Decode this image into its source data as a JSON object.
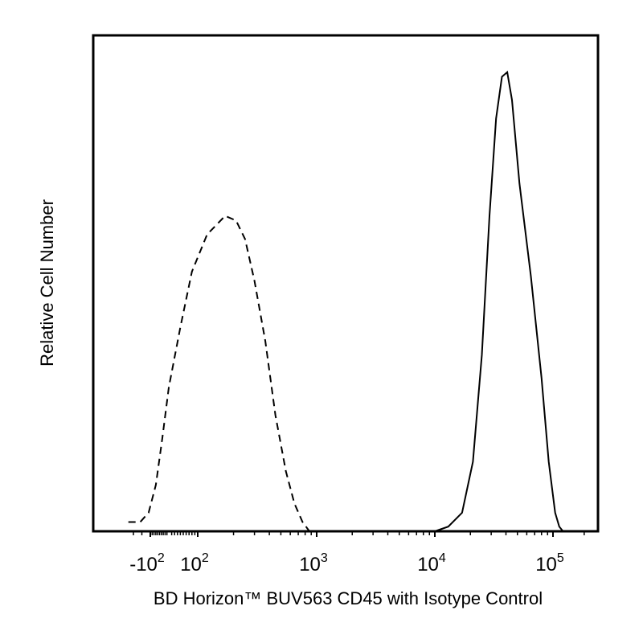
{
  "chart_data": {
    "type": "line",
    "title": "",
    "xlabel": "BD Horizon™ BUV563  CD45 with Isotype Control",
    "ylabel": "Relative Cell Number",
    "x_scale": "biexponential",
    "x_ticks": [
      {
        "value": -100,
        "base": "-10",
        "exp": "2"
      },
      {
        "value": 100,
        "base": "10",
        "exp": "2"
      },
      {
        "value": 1000,
        "base": "10",
        "exp": "3"
      },
      {
        "value": 10000,
        "base": "10",
        "exp": "4"
      },
      {
        "value": 100000,
        "base": "10",
        "exp": "5"
      }
    ],
    "xlim": [
      -300,
      262144
    ],
    "ylim": [
      0,
      100
    ],
    "grid": false,
    "legend": "none",
    "series": [
      {
        "style": "dashed",
        "points": [
          [
            -230,
            2
          ],
          [
            -160,
            2
          ],
          [
            -110,
            4
          ],
          [
            -70,
            10
          ],
          [
            -35,
            20
          ],
          [
            0,
            31
          ],
          [
            40,
            44
          ],
          [
            80,
            56
          ],
          [
            120,
            64
          ],
          [
            170,
            68
          ],
          [
            210,
            67
          ],
          [
            250,
            63
          ],
          [
            300,
            54
          ],
          [
            370,
            41
          ],
          [
            450,
            25
          ],
          [
            550,
            13
          ],
          [
            650,
            6
          ],
          [
            760,
            2
          ],
          [
            870,
            0
          ],
          [
            1000,
            0
          ]
        ]
      },
      {
        "style": "solid",
        "points": [
          [
            10000,
            0
          ],
          [
            13000,
            1
          ],
          [
            17000,
            4
          ],
          [
            21000,
            15
          ],
          [
            25000,
            38
          ],
          [
            29000,
            68
          ],
          [
            33000,
            89
          ],
          [
            37000,
            98
          ],
          [
            41000,
            99
          ],
          [
            45000,
            93
          ],
          [
            52000,
            75
          ],
          [
            65000,
            55
          ],
          [
            80000,
            33
          ],
          [
            92000,
            15
          ],
          [
            105000,
            4
          ],
          [
            115000,
            1
          ],
          [
            125000,
            0
          ]
        ]
      }
    ]
  }
}
